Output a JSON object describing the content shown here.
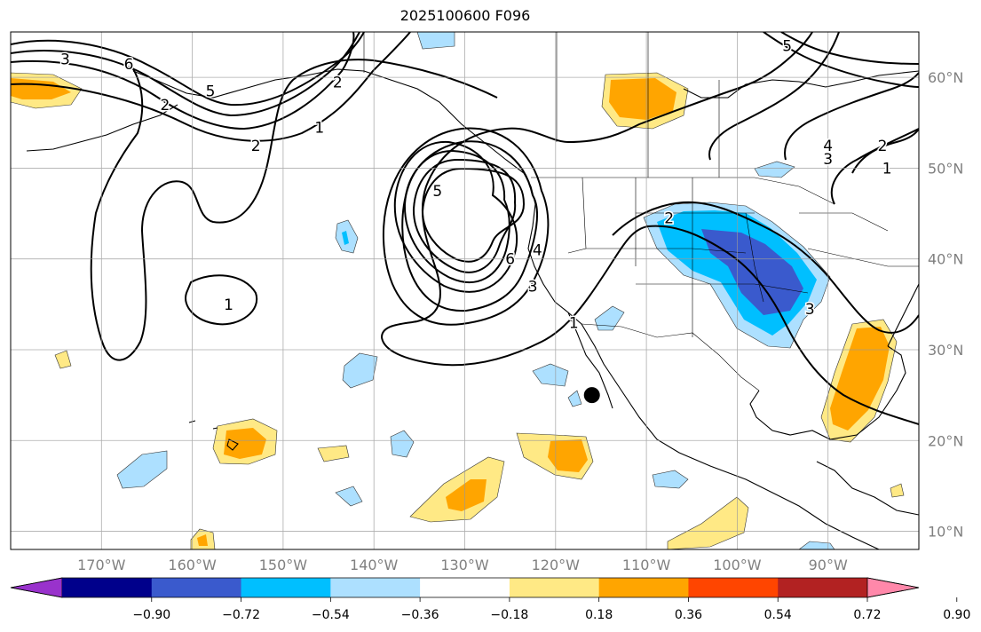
{
  "title": "2025100600 F096",
  "map": {
    "lon_range": [
      -180,
      -80
    ],
    "lat_range": [
      8,
      65
    ],
    "gridlines": true,
    "lat_ticks": [
      {
        "value": 10,
        "label": "10°N"
      },
      {
        "value": 20,
        "label": "20°N"
      },
      {
        "value": 30,
        "label": "30°N"
      },
      {
        "value": 40,
        "label": "40°N"
      },
      {
        "value": 50,
        "label": "50°N"
      },
      {
        "value": 60,
        "label": "60°N"
      }
    ],
    "lon_ticks": [
      {
        "value": -170,
        "label": "170°W"
      },
      {
        "value": -160,
        "label": "160°W"
      },
      {
        "value": -150,
        "label": "150°W"
      },
      {
        "value": -140,
        "label": "140°W"
      },
      {
        "value": -130,
        "label": "130°W"
      },
      {
        "value": -120,
        "label": "120°W"
      },
      {
        "value": -110,
        "label": "110°W"
      },
      {
        "value": -100,
        "label": "100°W"
      },
      {
        "value": -90,
        "label": "90°W"
      }
    ],
    "marker": {
      "lon": -116,
      "lat": 25,
      "color": "#000000"
    }
  },
  "colorbar": {
    "colors": [
      "#9932CC",
      "#00008B",
      "#3A5ACD",
      "#00BFFF",
      "#ADE0FF",
      "#FFFFFF",
      "#FFE985",
      "#FFA500",
      "#FF4500",
      "#B22222",
      "#FF88AA"
    ],
    "ticks": [
      "−0.90",
      "−0.72",
      "−0.54",
      "−0.36",
      "−0.18",
      "0.18",
      "0.36",
      "0.54",
      "0.72",
      "0.90"
    ]
  },
  "contour_labels": [
    {
      "text": "3",
      "lon": -174,
      "lat": 62
    },
    {
      "text": "6",
      "lon": -167,
      "lat": 61.5
    },
    {
      "text": "2",
      "lon": -163,
      "lat": 57
    },
    {
      "text": "5",
      "lon": -158,
      "lat": 58.5
    },
    {
      "text": "2",
      "lon": -144,
      "lat": 59.5
    },
    {
      "text": "1",
      "lon": -146,
      "lat": 54.5
    },
    {
      "text": "2",
      "lon": -153,
      "lat": 52.5
    },
    {
      "text": "1",
      "lon": -156,
      "lat": 35
    },
    {
      "text": "5",
      "lon": -133,
      "lat": 47.5
    },
    {
      "text": "6",
      "lon": -125,
      "lat": 40
    },
    {
      "text": "4",
      "lon": -122,
      "lat": 41
    },
    {
      "text": "3",
      "lon": -122.5,
      "lat": 37
    },
    {
      "text": "1",
      "lon": -118,
      "lat": 33
    },
    {
      "text": "2",
      "lon": -107.5,
      "lat": 44.5
    },
    {
      "text": "4",
      "lon": -90,
      "lat": 52.5
    },
    {
      "text": "3",
      "lon": -90,
      "lat": 51
    },
    {
      "text": "2",
      "lon": -84,
      "lat": 52.5
    },
    {
      "text": "1",
      "lon": -83.5,
      "lat": 50
    },
    {
      "text": "5",
      "lon": -94.5,
      "lat": 63.5
    },
    {
      "text": "3",
      "lon": -92,
      "lat": 34.5
    }
  ]
}
